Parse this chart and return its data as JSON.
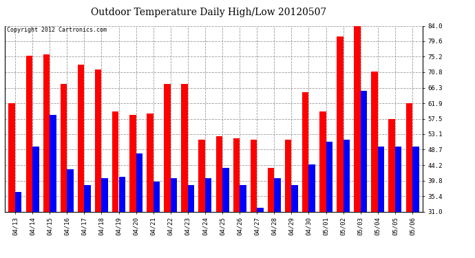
{
  "title": "Outdoor Temperature Daily High/Low 20120507",
  "copyright": "Copyright 2012 Cartronics.com",
  "categories": [
    "04/13",
    "04/14",
    "04/15",
    "04/16",
    "04/17",
    "04/18",
    "04/19",
    "04/20",
    "04/21",
    "04/22",
    "04/23",
    "04/24",
    "04/25",
    "04/26",
    "04/27",
    "04/28",
    "04/29",
    "04/30",
    "05/01",
    "05/02",
    "05/03",
    "05/04",
    "05/05",
    "05/06"
  ],
  "highs": [
    62.0,
    75.5,
    75.8,
    67.5,
    73.0,
    71.5,
    59.5,
    58.5,
    59.0,
    67.5,
    67.5,
    51.5,
    52.5,
    52.0,
    51.5,
    43.5,
    51.5,
    65.0,
    59.5,
    81.0,
    84.5,
    71.0,
    57.5,
    62.0
  ],
  "lows": [
    36.5,
    49.5,
    58.5,
    43.0,
    38.5,
    40.5,
    41.0,
    47.5,
    39.5,
    40.5,
    38.5,
    40.5,
    43.5,
    38.5,
    32.0,
    40.5,
    38.5,
    44.5,
    51.0,
    51.5,
    65.5,
    49.5,
    49.5,
    49.5
  ],
  "high_color": "#ff0000",
  "low_color": "#0000ff",
  "bg_color": "#ffffff",
  "grid_color": "#999999",
  "ylim_min": 31.0,
  "ylim_max": 84.0,
  "yticks": [
    31.0,
    35.4,
    39.8,
    44.2,
    48.7,
    53.1,
    57.5,
    61.9,
    66.3,
    70.8,
    75.2,
    79.6,
    84.0
  ],
  "bar_width": 0.38,
  "title_fontsize": 10,
  "tick_fontsize": 6.5,
  "copyright_fontsize": 6
}
